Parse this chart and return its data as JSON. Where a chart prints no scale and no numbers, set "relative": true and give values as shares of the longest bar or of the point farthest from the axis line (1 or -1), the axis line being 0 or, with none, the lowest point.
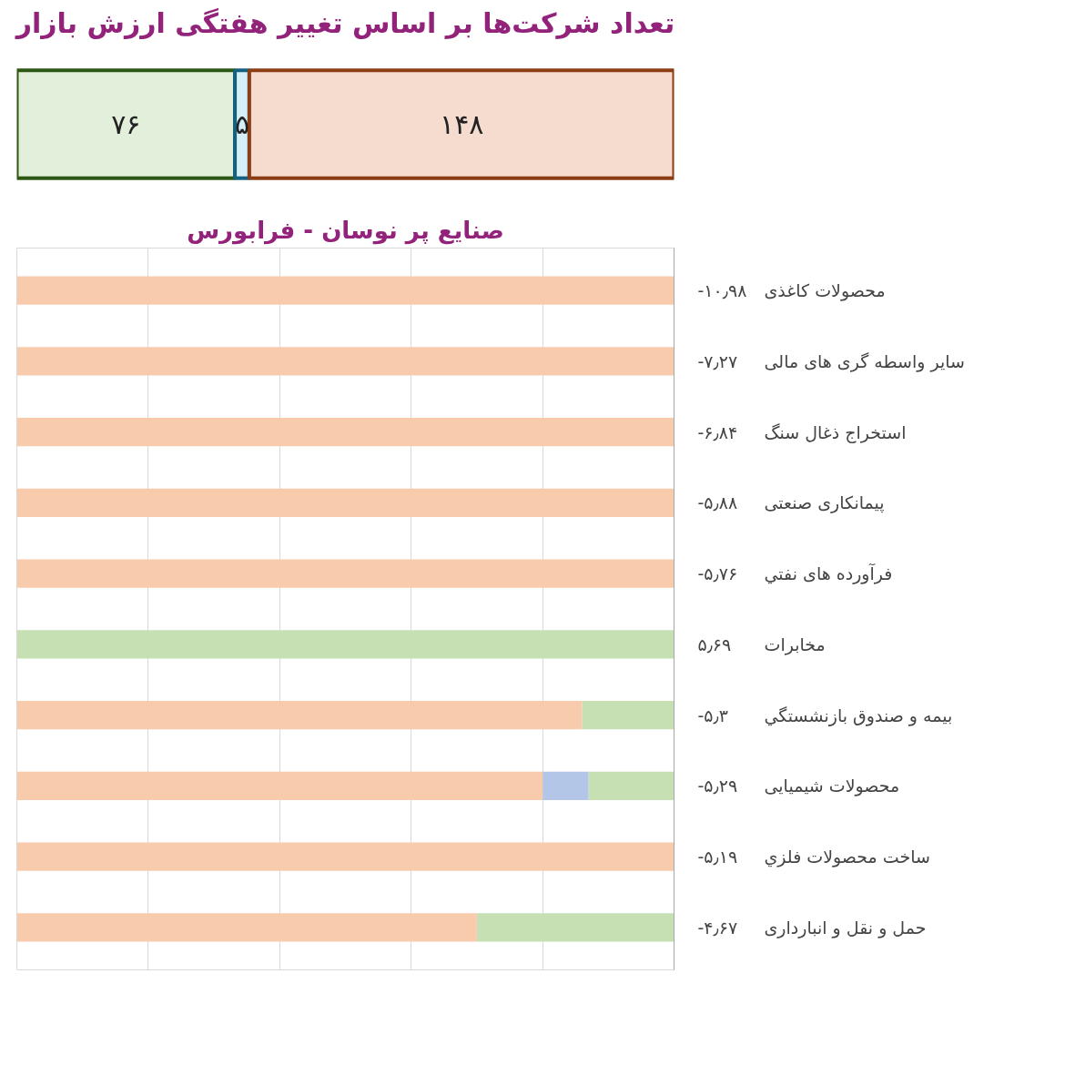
{
  "chart_data": [
    {
      "type": "bar",
      "orientation": "horizontal",
      "stacked": true,
      "title": "تعداد شرکت‌ها بر اساس تغییر هفتگی ارزش بازار",
      "categories": [
        null
      ],
      "tick_labels": false,
      "series": [
        {
          "color": "#e2efda",
          "values": [
            76
          ],
          "value_labels": [
            "۷۶"
          ]
        },
        {
          "color": "#d6eef8",
          "values": [
            5
          ],
          "value_labels": [
            "۵"
          ]
        },
        {
          "color": "#f5dccf",
          "values": [
            148
          ],
          "value_labels": [
            "۱۴۸"
          ]
        }
      ]
    },
    {
      "type": "bar",
      "orientation": "horizontal",
      "stacked": true,
      "relative": true,
      "grid": "x",
      "title": "صنایع پر نوسان - فرابورس",
      "categories": [
        "محصولات کاغذی",
        "سایر واسطه گری های مالی",
        "استخراج ذغال سنگ",
        "پیمانکاری صنعتی",
        "فرآورده های نفتي",
        "مخابرات",
        "بیمه و صندوق بازنشستگي",
        "محصولات شیمیایی",
        "ساخت محصولات فلزي",
        "حمل و نقل و انبارداری"
      ],
      "series": [
        {
          "color": "#c6e0b4",
          "values": [
            0,
            0,
            0,
            0,
            0,
            1,
            0.14,
            0.13,
            0,
            0.3
          ]
        },
        {
          "color": "#b4c6e7",
          "values": [
            0,
            0,
            0,
            0,
            0,
            0,
            0,
            0.07,
            0,
            0
          ]
        },
        {
          "color": "#f8cbad",
          "values": [
            1,
            1,
            1,
            1,
            1,
            0,
            0.86,
            0.8,
            1,
            0.7
          ]
        }
      ],
      "annotations": [
        "-۱۰٫۹۸",
        "-۷٫۲۷",
        "-۶٫۸۴",
        "-۵٫۸۸",
        "-۵٫۷۶",
        "۵٫۶۹",
        "-۵٫۳",
        "-۵٫۲۹",
        "-۵٫۱۹",
        "-۴٫۶۷"
      ]
    }
  ]
}
